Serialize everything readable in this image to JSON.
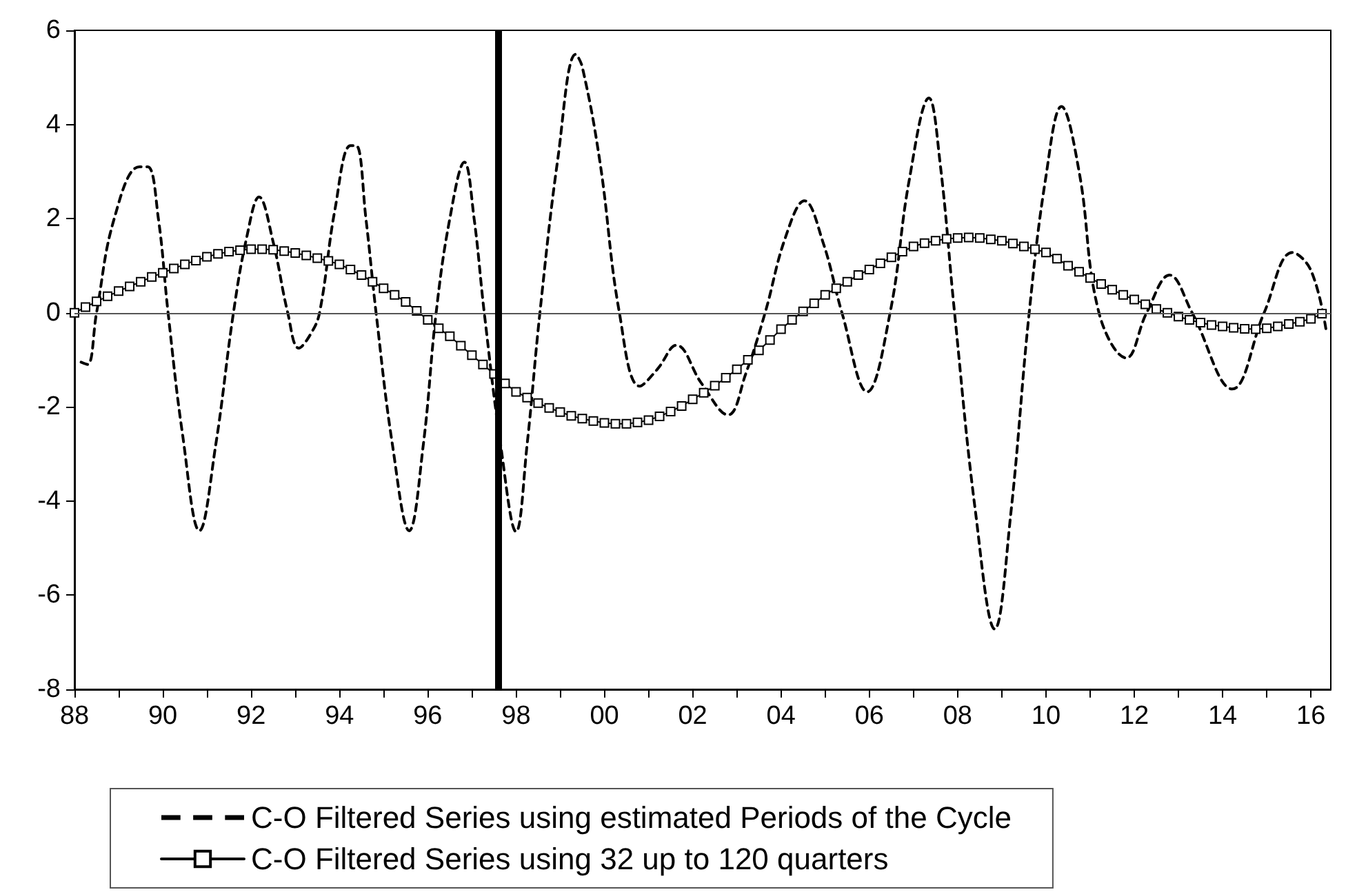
{
  "chart_data": {
    "type": "line",
    "xlim": [
      1988,
      2016.45
    ],
    "ylim": [
      -8,
      6
    ],
    "yticks": [
      -8,
      -6,
      -4,
      -2,
      0,
      2,
      4,
      6
    ],
    "xticks": [
      {
        "value": 1988,
        "label": "88"
      },
      {
        "value": 1989,
        "label": null
      },
      {
        "value": 1990,
        "label": "90"
      },
      {
        "value": 1991,
        "label": null
      },
      {
        "value": 1992,
        "label": "92"
      },
      {
        "value": 1993,
        "label": null
      },
      {
        "value": 1994,
        "label": "94"
      },
      {
        "value": 1995,
        "label": null
      },
      {
        "value": 1996,
        "label": "96"
      },
      {
        "value": 1997,
        "label": null
      },
      {
        "value": 1998,
        "label": "98"
      },
      {
        "value": 1999,
        "label": null
      },
      {
        "value": 2000,
        "label": "00"
      },
      {
        "value": 2001,
        "label": null
      },
      {
        "value": 2002,
        "label": "02"
      },
      {
        "value": 2003,
        "label": null
      },
      {
        "value": 2004,
        "label": "04"
      },
      {
        "value": 2005,
        "label": null
      },
      {
        "value": 2006,
        "label": "06"
      },
      {
        "value": 2007,
        "label": null
      },
      {
        "value": 2008,
        "label": "08"
      },
      {
        "value": 2009,
        "label": null
      },
      {
        "value": 2010,
        "label": "10"
      },
      {
        "value": 2011,
        "label": null
      },
      {
        "value": 2012,
        "label": "12"
      },
      {
        "value": 2013,
        "label": null
      },
      {
        "value": 2014,
        "label": "14"
      },
      {
        "value": 2015,
        "label": null
      },
      {
        "value": 2016,
        "label": "16"
      }
    ],
    "grid": false,
    "legend": "bottom",
    "ref_lines": [
      {
        "axis": "x",
        "value": 1997.6,
        "color": "#000000"
      },
      {
        "axis": "y",
        "value": 0,
        "color": "#555555"
      }
    ],
    "series": [
      {
        "name": "C-O Filtered Series using estimated Periods of the Cycle",
        "color": "#000000",
        "line_style": "dashed",
        "marker": "none",
        "x": [
          1988.15,
          1988.3,
          1988.5,
          1988.9,
          1989.47,
          1989.66,
          1989.9,
          1990.12,
          1990.45,
          1990.83,
          1991.2,
          1991.6,
          1991.9,
          1992.18,
          1992.5,
          1992.83,
          1993.08,
          1993.35,
          1993.55,
          1993.9,
          1994.25,
          1994.38,
          1994.6,
          1994.83,
          1995.2,
          1995.58,
          1995.9,
          1996.19,
          1996.5,
          1996.83,
          1997.05,
          1997.28,
          1997.65,
          1998.0,
          1998.25,
          1998.54,
          1998.95,
          1999.35,
          1999.5,
          1999.9,
          2000.34,
          2000.8,
          2001.2,
          2001.63,
          2002.2,
          2002.8,
          2003.2,
          2003.64,
          2004.1,
          2004.53,
          2004.95,
          2005.38,
          2005.95,
          2006.47,
          2006.9,
          2007.35,
          2007.6,
          2007.93,
          2008.4,
          2008.84,
          2009.2,
          2009.62,
          2010.0,
          2010.35,
          2010.75,
          2011.2,
          2011.82,
          2012.28,
          2012.8,
          2013.31,
          2014.22,
          2014.94,
          2015.58,
          2016.0,
          2016.34
        ],
        "values": [
          -1.05,
          -1.1,
          0,
          2.0,
          3.1,
          3.1,
          2.0,
          0,
          -2.6,
          -4.63,
          -2.8,
          0,
          1.6,
          2.46,
          1.5,
          0,
          -0.75,
          -0.45,
          0,
          2.2,
          3.55,
          3.55,
          2.0,
          0,
          -2.8,
          -4.63,
          -2.8,
          0,
          2.0,
          3.2,
          2.0,
          0,
          -2.8,
          -4.65,
          -2.8,
          0,
          3.3,
          5.49,
          5.22,
          3.2,
          0,
          -1.56,
          -1.2,
          -0.69,
          -1.5,
          -2.17,
          -1.3,
          0,
          1.6,
          2.38,
          1.5,
          0,
          -1.68,
          0,
          2.8,
          4.56,
          3.2,
          0,
          -4.2,
          -6.72,
          -4.3,
          0,
          2.9,
          4.38,
          3.0,
          0,
          -0.96,
          0,
          0.8,
          0,
          -1.62,
          0,
          1.28,
          0.9,
          -0.35
        ]
      },
      {
        "name": "C-O Filtered Series using 32 up to 120 quarters",
        "color": "#000000",
        "line_style": "solid",
        "marker": "square",
        "x": [
          1988,
          1988.25,
          1988.5,
          1988.75,
          1989,
          1989.25,
          1989.5,
          1989.75,
          1990,
          1990.25,
          1990.5,
          1990.75,
          1991,
          1991.25,
          1991.5,
          1991.75,
          1992,
          1992.25,
          1992.5,
          1992.75,
          1993,
          1993.25,
          1993.5,
          1993.75,
          1994,
          1994.25,
          1994.5,
          1994.75,
          1995,
          1995.25,
          1995.5,
          1995.75,
          1996,
          1996.25,
          1996.5,
          1996.75,
          1997,
          1997.25,
          1997.5,
          1997.75,
          1998,
          1998.25,
          1998.5,
          1998.75,
          1999,
          1999.25,
          1999.5,
          1999.75,
          2000,
          2000.25,
          2000.5,
          2000.75,
          2001,
          2001.25,
          2001.5,
          2001.75,
          2002,
          2002.25,
          2002.5,
          2002.75,
          2003,
          2003.25,
          2003.5,
          2003.75,
          2004,
          2004.25,
          2004.5,
          2004.75,
          2005,
          2005.25,
          2005.5,
          2005.75,
          2006,
          2006.25,
          2006.5,
          2006.75,
          2007,
          2007.25,
          2007.5,
          2007.75,
          2008,
          2008.25,
          2008.5,
          2008.75,
          2009,
          2009.25,
          2009.5,
          2009.75,
          2010,
          2010.25,
          2010.5,
          2010.75,
          2011,
          2011.25,
          2011.5,
          2011.75,
          2012,
          2012.25,
          2012.5,
          2012.75,
          2013,
          2013.25,
          2013.5,
          2013.75,
          2014,
          2014.25,
          2014.5,
          2014.75,
          2015,
          2015.25,
          2015.5,
          2015.75,
          2016,
          2016.25
        ],
        "values": [
          0.0,
          0.12,
          0.24,
          0.35,
          0.46,
          0.56,
          0.66,
          0.76,
          0.85,
          0.94,
          1.03,
          1.11,
          1.19,
          1.25,
          1.3,
          1.33,
          1.35,
          1.35,
          1.34,
          1.31,
          1.27,
          1.22,
          1.16,
          1.1,
          1.03,
          0.92,
          0.8,
          0.66,
          0.52,
          0.38,
          0.23,
          0.04,
          -0.15,
          -0.33,
          -0.5,
          -0.7,
          -0.9,
          -1.1,
          -1.3,
          -1.5,
          -1.68,
          -1.8,
          -1.92,
          -2.02,
          -2.11,
          -2.19,
          -2.25,
          -2.3,
          -2.34,
          -2.36,
          -2.36,
          -2.33,
          -2.28,
          -2.2,
          -2.1,
          -1.98,
          -1.84,
          -1.7,
          -1.55,
          -1.38,
          -1.2,
          -1.0,
          -0.8,
          -0.58,
          -0.35,
          -0.15,
          0.03,
          0.2,
          0.38,
          0.52,
          0.66,
          0.8,
          0.92,
          1.05,
          1.18,
          1.3,
          1.41,
          1.48,
          1.53,
          1.57,
          1.59,
          1.6,
          1.59,
          1.56,
          1.53,
          1.47,
          1.41,
          1.35,
          1.28,
          1.15,
          1.0,
          0.87,
          0.74,
          0.61,
          0.49,
          0.38,
          0.28,
          0.18,
          0.08,
          0.0,
          -0.08,
          -0.15,
          -0.21,
          -0.26,
          -0.29,
          -0.32,
          -0.34,
          -0.35,
          -0.33,
          -0.29,
          -0.24,
          -0.19,
          -0.13,
          -0.02
        ]
      }
    ]
  }
}
